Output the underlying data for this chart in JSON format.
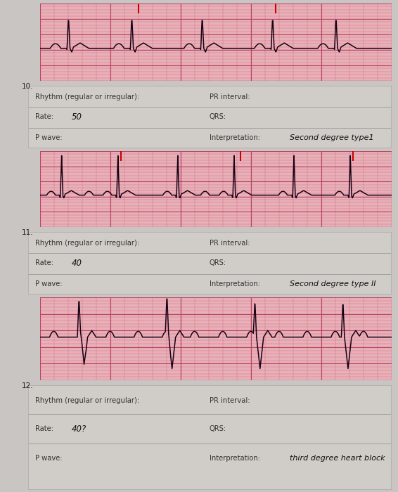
{
  "page_bg": "#c8c5c2",
  "ecg_bg": "#e8b0b8",
  "ecg_minor_color": "#d07080",
  "ecg_major_color": "#b84060",
  "ecg_line_color": "#1a0015",
  "answer_bg": "#d0cdc8",
  "answer_line_color": "#999999",
  "label_color": "#333333",
  "hw_color": "#111111",
  "num_color": "#222222",
  "sections": [
    {
      "number": "10.",
      "rate_value": "50",
      "interp_value": "Second degree type1"
    },
    {
      "number": "11.",
      "rate_value": "40",
      "interp_value": "Second degree type II"
    },
    {
      "number": "12.",
      "rate_value": "40?",
      "interp_value": "third degree heart block"
    }
  ],
  "labels": {
    "rhythm": "Rhythm (regular or irregular):",
    "pr": "PR interval:",
    "rate": "Rate:",
    "qrs": "QRS:",
    "pwave": "P wave:",
    "interp": "Interpretation:"
  }
}
